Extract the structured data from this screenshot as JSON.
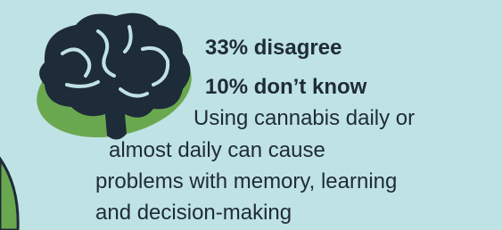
{
  "stats": [
    "33% disagree",
    "10% don’t know"
  ],
  "statement": [
    "Using cannabis daily or",
    "almost daily can cause",
    "problems with memory, learning",
    "and decision-making"
  ]
}
